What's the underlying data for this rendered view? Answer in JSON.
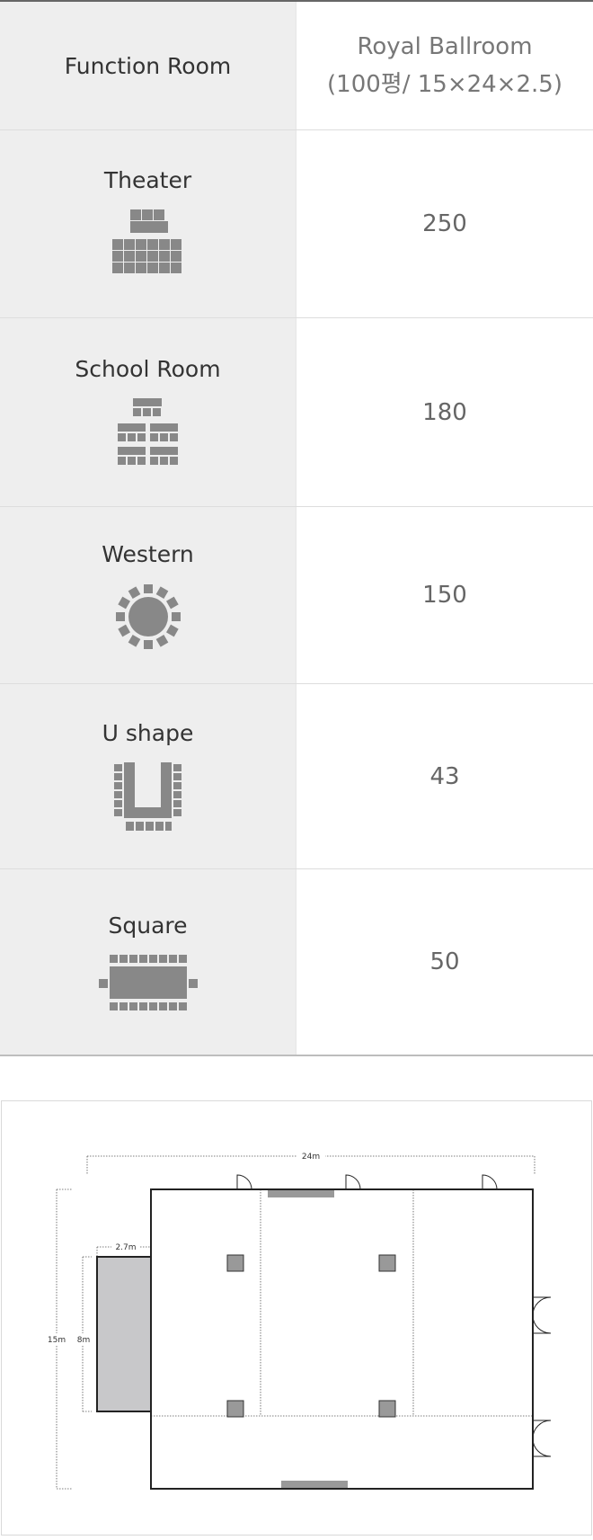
{
  "table": {
    "header_label": "Function Room",
    "room_name": "Royal Ballroom",
    "room_spec": "(100평/ 15×24×2.5)",
    "rows": [
      {
        "label": "Theater",
        "icon": "theater-layout-icon",
        "capacity": "250"
      },
      {
        "label": "School Room",
        "icon": "school-room-layout-icon",
        "capacity": "180"
      },
      {
        "label": "Western",
        "icon": "western-round-table-icon",
        "capacity": "150"
      },
      {
        "label": "U shape",
        "icon": "u-shape-layout-icon",
        "capacity": "43"
      },
      {
        "label": "Square",
        "icon": "square-layout-icon",
        "capacity": "50"
      }
    ]
  },
  "floor_plan": {
    "width_label": "24m",
    "height_label": "15m",
    "stage_width_label": "2.7m",
    "stage_height_label": "8m"
  },
  "colors": {
    "label_bg": "#eeeeee",
    "icon_gray": "#888888",
    "value_text": "#666666",
    "stage_fill": "#c8c8ca"
  }
}
